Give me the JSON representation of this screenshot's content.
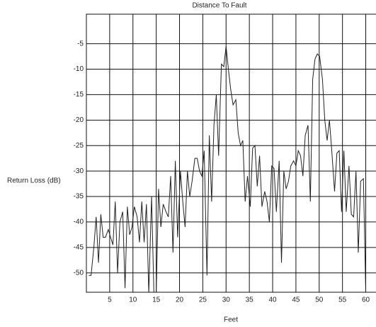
{
  "chart_data": {
    "type": "line",
    "title": "Distance To Fault",
    "x_label": "Feet",
    "y_label": "Return Loss (dB)",
    "x": [
      0.5,
      1,
      1.6,
      2.1,
      2.6,
      3.1,
      3.6,
      4.1,
      4.7,
      5.2,
      5.7,
      6.2,
      6.7,
      7.2,
      7.8,
      8.3,
      8.8,
      9.3,
      9.8,
      10.3,
      10.9,
      11.4,
      11.9,
      12.4,
      12.9,
      13.4,
      14,
      14.5,
      15,
      15.5,
      16,
      16.5,
      17.1,
      17.6,
      18.1,
      18.6,
      19.1,
      19.6,
      20.2,
      20.7,
      21.2,
      21.7,
      22.2,
      22.7,
      23.3,
      23.8,
      24.3,
      24.8,
      25.3,
      25.9,
      26.4,
      26.9,
      27.4,
      27.9,
      28.4,
      29,
      29.5,
      30,
      30.5,
      31,
      31.5,
      32.1,
      32.6,
      33.1,
      33.6,
      34.1,
      34.6,
      35.2,
      35.7,
      36.2,
      36.7,
      37.2,
      37.7,
      38.3,
      38.8,
      39.3,
      39.8,
      40.3,
      40.8,
      41.4,
      41.9,
      42.4,
      42.9,
      43.4,
      43.9,
      44.5,
      45,
      45.5,
      46,
      46.5,
      47,
      47.6,
      48.1,
      48.6,
      49.1,
      49.6,
      50.1,
      50.7,
      51.2,
      51.7,
      52.2,
      52.7,
      53.3,
      53.8,
      54.3,
      54.8,
      55.3,
      55.8,
      56.4,
      56.9,
      57.4,
      57.9,
      58.4,
      58.9,
      59.5,
      60
    ],
    "values": [
      -50.5,
      -50.5,
      -45,
      -39,
      -48,
      -38.5,
      -43,
      -43,
      -41.5,
      -43,
      -44.5,
      -36,
      -50,
      -40,
      -38,
      -53,
      -37,
      -42.5,
      -41,
      -37,
      -39,
      -44,
      -36,
      -44,
      -36.5,
      -54,
      -35,
      -54,
      -54,
      -33.5,
      -41,
      -36.5,
      -38,
      -39,
      -31,
      -46,
      -28,
      -43,
      -30,
      -36,
      -41,
      -30,
      -35,
      -32,
      -27.5,
      -27.5,
      -30,
      -31,
      -26,
      -50.5,
      -23,
      -36,
      -21,
      -15,
      -27,
      -9,
      -9.5,
      -5.5,
      -10,
      -14,
      -17,
      -16,
      -22.5,
      -25,
      -24,
      -36,
      -31,
      -37,
      -25.5,
      -25,
      -33,
      -27,
      -37,
      -34,
      -36,
      -40,
      -29,
      -29.5,
      -38,
      -28,
      -48,
      -30,
      -33.5,
      -32,
      -29,
      -28,
      -29,
      -26,
      -27,
      -31,
      -23,
      -21,
      -36,
      -12,
      -8,
      -7,
      -7.5,
      -12,
      -20,
      -24,
      -20,
      -26,
      -34,
      -26.5,
      -26,
      -38,
      -26,
      -38,
      -29,
      -38.5,
      -39,
      -30,
      -46,
      -32,
      -31.5,
      -54
    ],
    "color": "#222222",
    "xlim": [
      0,
      62.2
    ],
    "ylim": [
      -53.8,
      0.8
    ],
    "xticks": [
      5,
      10,
      15,
      20,
      25,
      30,
      35,
      40,
      45,
      50,
      55,
      60
    ],
    "yticks": [
      -5,
      -10,
      -15,
      -20,
      -25,
      -30,
      -35,
      -40,
      -45,
      -50
    ],
    "grid": true
  }
}
